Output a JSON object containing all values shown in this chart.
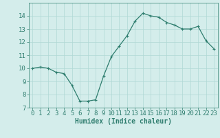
{
  "x": [
    0,
    1,
    2,
    3,
    4,
    5,
    6,
    7,
    8,
    9,
    10,
    11,
    12,
    13,
    14,
    15,
    16,
    17,
    18,
    19,
    20,
    21,
    22,
    23
  ],
  "y": [
    10.0,
    10.1,
    10.0,
    9.7,
    9.6,
    8.7,
    7.5,
    7.5,
    7.6,
    9.4,
    10.9,
    11.7,
    12.5,
    13.6,
    14.2,
    14.0,
    13.9,
    13.5,
    13.3,
    13.0,
    13.0,
    13.2,
    12.1,
    11.5
  ],
  "line_color": "#2e7d6e",
  "marker": "+",
  "marker_size": 3.5,
  "linewidth": 0.9,
  "xlabel": "Humidex (Indice chaleur)",
  "xlim": [
    -0.5,
    23.5
  ],
  "ylim": [
    7,
    15
  ],
  "yticks": [
    7,
    8,
    9,
    10,
    11,
    12,
    13,
    14
  ],
  "xticks": [
    0,
    1,
    2,
    3,
    4,
    5,
    6,
    7,
    8,
    9,
    10,
    11,
    12,
    13,
    14,
    15,
    16,
    17,
    18,
    19,
    20,
    21,
    22,
    23
  ],
  "bg_color": "#d4edeb",
  "grid_color": "#b0d8d5",
  "tick_color": "#2e7d6e",
  "label_color": "#2e7d6e",
  "xlabel_fontsize": 7,
  "tick_fontsize": 6.5
}
